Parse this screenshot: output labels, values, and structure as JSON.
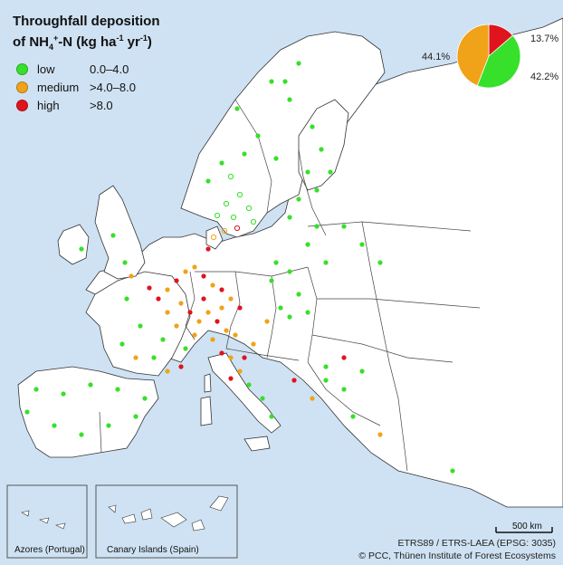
{
  "title": {
    "line1": "Throughfall deposition",
    "line2_prefix": "of NH",
    "line2_sub": "4",
    "line2_sup": "+",
    "line2_suffix": "-N  (kg ha",
    "unit_sup1": "-1",
    "unit_mid": " yr",
    "unit_sup2": "-1",
    "unit_end": ")"
  },
  "legend": [
    {
      "name": "low",
      "range": "0.0–4.0",
      "color": "#37e02a"
    },
    {
      "name": "medium",
      "range": ">4.0–8.0",
      "color": "#f0a318"
    },
    {
      "name": "high",
      "range": ">8.0",
      "color": "#e0141c"
    }
  ],
  "pie": {
    "slices": [
      {
        "class": "high",
        "percent": 13.7,
        "label": "13.7%",
        "color": "#e0141c"
      },
      {
        "class": "low",
        "percent": 42.2,
        "label": "42.2%",
        "color": "#37e02a"
      },
      {
        "class": "medium",
        "percent": 44.1,
        "label": "44.1%",
        "color": "#f0a318"
      }
    ]
  },
  "insets": {
    "azores": "Azores (Portugal)",
    "canary": "Canary Islands (Spain)"
  },
  "scale_bar": "500 km",
  "credits": {
    "projection": "ETRS89 / ETRS-LAEA (EPSG: 3035)",
    "copyright": "© PCC, Thünen Institute of Forest Ecosystems"
  },
  "colors": {
    "sea": "#cfe2f3",
    "land": "#ffffff",
    "border": "#333333"
  }
}
